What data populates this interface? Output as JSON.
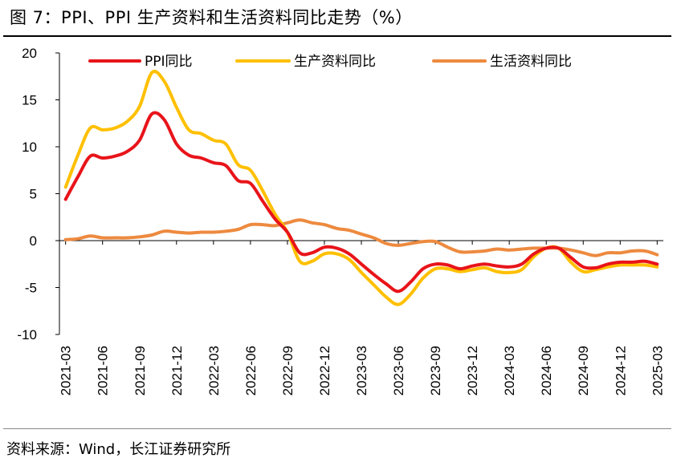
{
  "figure": {
    "title": "图 7：PPI、PPI 生产资料和生活资料同比走势（%）",
    "source": "资料来源：Wind，长江证券研究所"
  },
  "colors": {
    "ppi": "#e8141a",
    "production": "#ffc000",
    "living": "#ed8a3f",
    "axis": "#000000",
    "zero_line": "#000000"
  },
  "chart_data": {
    "type": "line",
    "x": [
      "2021-03",
      "2021-04",
      "2021-05",
      "2021-06",
      "2021-07",
      "2021-08",
      "2021-09",
      "2021-10",
      "2021-11",
      "2021-12",
      "2022-01",
      "2022-02",
      "2022-03",
      "2022-04",
      "2022-05",
      "2022-06",
      "2022-07",
      "2022-08",
      "2022-09",
      "2022-10",
      "2022-11",
      "2022-12",
      "2023-01",
      "2023-02",
      "2023-03",
      "2023-04",
      "2023-05",
      "2023-06",
      "2023-07",
      "2023-08",
      "2023-09",
      "2023-10",
      "2023-11",
      "2023-12",
      "2024-01",
      "2024-02",
      "2024-03",
      "2024-04",
      "2024-05",
      "2024-06",
      "2024-07",
      "2024-08",
      "2024-09",
      "2024-10",
      "2024-11",
      "2024-12",
      "2025-01",
      "2025-02",
      "2025-03"
    ],
    "x_tick_labels": [
      "2021-03",
      "2021-06",
      "2021-09",
      "2021-12",
      "2022-03",
      "2022-06",
      "2022-09",
      "2022-12",
      "2023-03",
      "2023-06",
      "2023-09",
      "2023-12",
      "2024-03",
      "2024-06",
      "2024-09",
      "2024-12",
      "2025-03"
    ],
    "series": [
      {
        "name": "PPI同比",
        "color_key": "ppi",
        "values": [
          4.4,
          6.8,
          9.0,
          8.8,
          9.0,
          9.5,
          10.7,
          13.5,
          12.9,
          10.3,
          9.1,
          8.8,
          8.3,
          8.0,
          6.4,
          6.1,
          4.2,
          2.3,
          0.9,
          -1.3,
          -1.3,
          -0.7,
          -0.8,
          -1.4,
          -2.5,
          -3.6,
          -4.6,
          -5.4,
          -4.4,
          -3.0,
          -2.5,
          -2.6,
          -3.0,
          -2.7,
          -2.5,
          -2.7,
          -2.8,
          -2.5,
          -1.4,
          -0.8,
          -0.8,
          -1.8,
          -2.8,
          -2.9,
          -2.5,
          -2.3,
          -2.3,
          -2.2,
          -2.5
        ]
      },
      {
        "name": "生产资料同比",
        "color_key": "production",
        "values": [
          5.7,
          9.1,
          12.0,
          11.8,
          12.0,
          12.7,
          14.3,
          17.9,
          17.0,
          14.2,
          11.8,
          11.4,
          10.7,
          10.3,
          8.1,
          7.5,
          5.3,
          2.8,
          0.9,
          -2.2,
          -2.2,
          -1.4,
          -1.4,
          -2.0,
          -3.4,
          -4.7,
          -6.0,
          -6.8,
          -5.7,
          -4.0,
          -3.0,
          -3.0,
          -3.3,
          -3.1,
          -2.9,
          -3.3,
          -3.4,
          -3.1,
          -1.7,
          -0.8,
          -0.8,
          -2.3,
          -3.3,
          -3.1,
          -2.8,
          -2.6,
          -2.6,
          -2.6,
          -2.8
        ]
      },
      {
        "name": "生活资料同比",
        "color_key": "living",
        "values": [
          0.1,
          0.2,
          0.5,
          0.3,
          0.3,
          0.3,
          0.4,
          0.6,
          1.0,
          0.9,
          0.8,
          0.9,
          0.9,
          1.0,
          1.2,
          1.7,
          1.7,
          1.6,
          1.9,
          2.2,
          1.9,
          1.7,
          1.3,
          1.1,
          0.7,
          0.3,
          -0.3,
          -0.5,
          -0.3,
          -0.1,
          -0.1,
          -0.7,
          -1.2,
          -1.2,
          -1.1,
          -0.9,
          -1.0,
          -0.9,
          -0.8,
          -0.8,
          -0.8,
          -1.0,
          -1.3,
          -1.6,
          -1.3,
          -1.3,
          -1.1,
          -1.1,
          -1.5
        ]
      }
    ],
    "y_ticks": [
      -10,
      -5,
      0,
      5,
      10,
      15,
      20
    ],
    "ylim": [
      -10,
      20
    ],
    "legend_position": "top",
    "grid": false
  }
}
